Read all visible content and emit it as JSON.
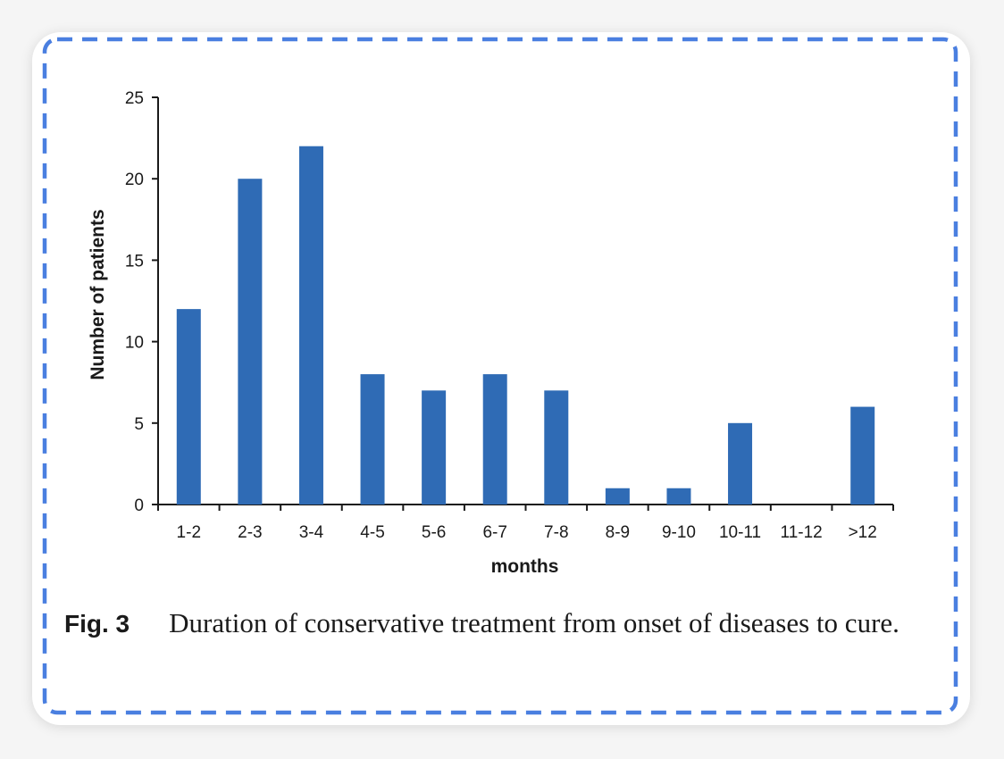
{
  "colors": {
    "bar": "#2f6bb5",
    "frame_dash": "#4a7fe0",
    "axis": "#1a1a1a"
  },
  "caption": {
    "label": "Fig. 3",
    "text": "Duration of conservative treatment from onset of diseases to cure."
  },
  "chart_data": {
    "type": "bar",
    "title": "",
    "xlabel": "months",
    "ylabel": "Number of patients",
    "categories": [
      "1-2",
      "2-3",
      "3-4",
      "4-5",
      "5-6",
      "6-7",
      "7-8",
      "8-9",
      "9-10",
      "10-11",
      "11-12",
      ">12"
    ],
    "values": [
      12,
      20,
      22,
      8,
      7,
      8,
      7,
      1,
      1,
      5,
      0,
      6
    ],
    "ylim": [
      0,
      25
    ],
    "yticks": [
      0,
      5,
      10,
      15,
      20,
      25
    ],
    "grid": false,
    "legend": "none"
  }
}
